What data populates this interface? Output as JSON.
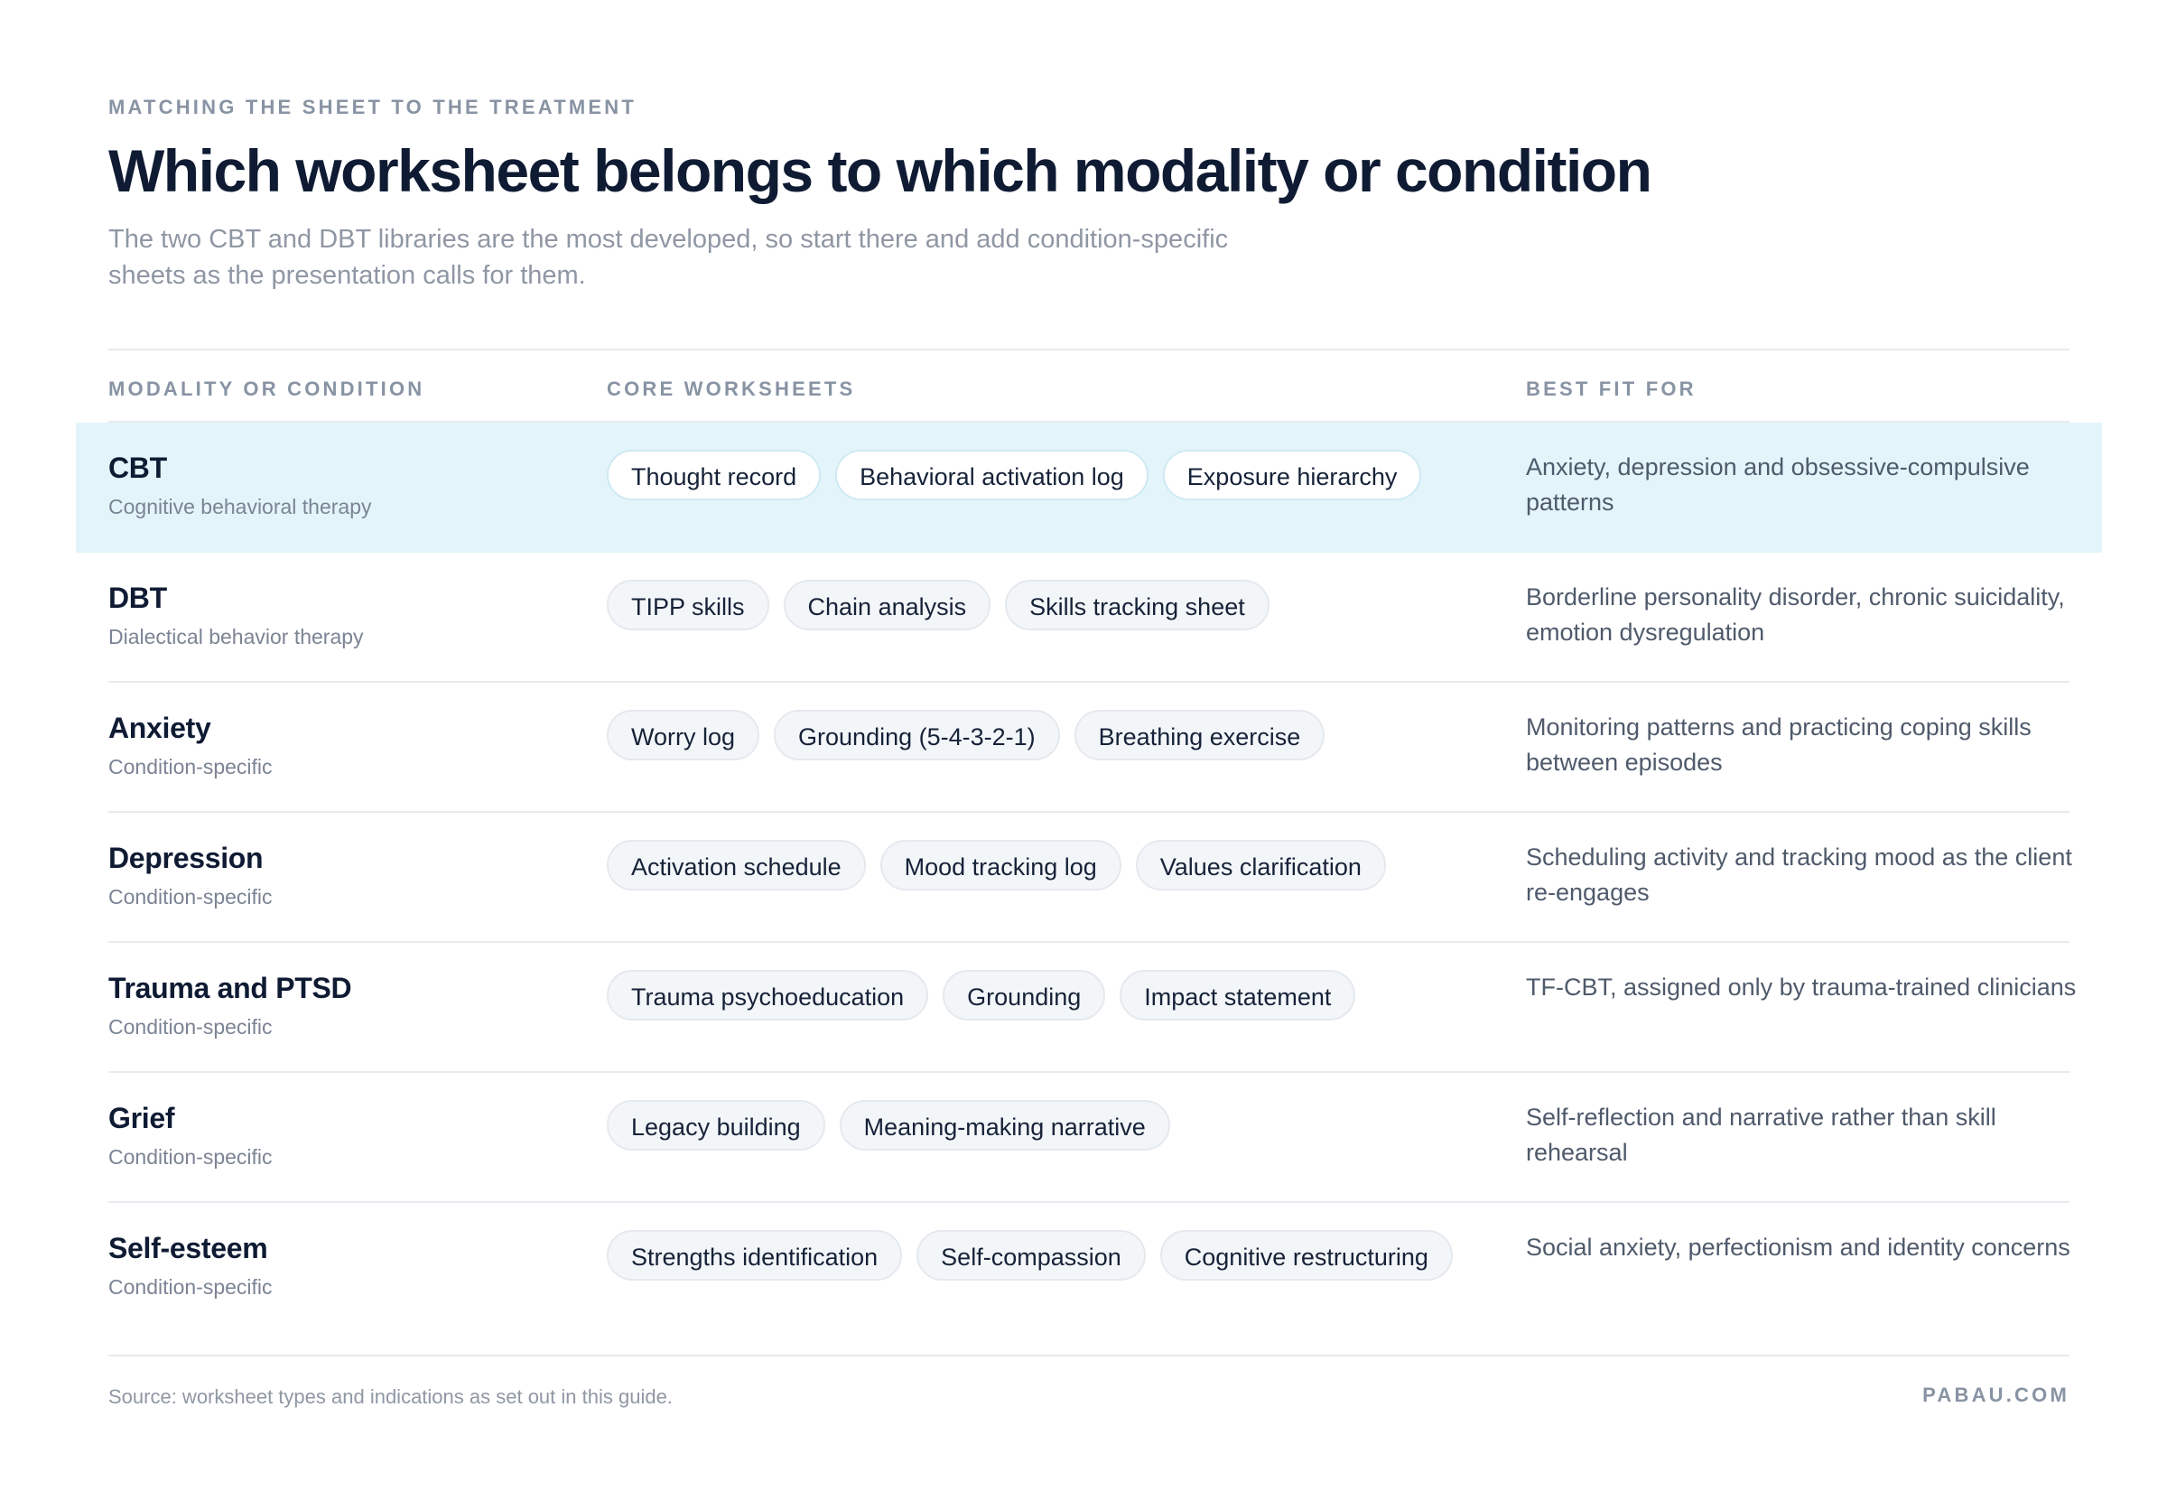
{
  "header": {
    "eyebrow": "MATCHING THE SHEET TO THE TREATMENT",
    "title": "Which worksheet belongs to which modality or condition",
    "subtitle": "The two CBT and DBT libraries are the most developed, so start there and add condition-specific sheets as the presentation calls for them."
  },
  "table": {
    "columns": [
      "MODALITY OR CONDITION",
      "CORE WORKSHEETS",
      "BEST FIT FOR"
    ],
    "rows": [
      {
        "name": "CBT",
        "subname": "Cognitive behavioral therapy",
        "worksheets": [
          "Thought record",
          "Behavioral activation log",
          "Exposure hierarchy"
        ],
        "best_fit": "Anxiety, depression and obsessive-compulsive patterns",
        "highlighted": true
      },
      {
        "name": "DBT",
        "subname": "Dialectical behavior therapy",
        "worksheets": [
          "TIPP skills",
          "Chain analysis",
          "Skills tracking sheet"
        ],
        "best_fit": "Borderline personality disorder, chronic suicidality, emotion dysregulation"
      },
      {
        "name": "Anxiety",
        "subname": "Condition-specific",
        "worksheets": [
          "Worry log",
          "Grounding (5-4-3-2-1)",
          "Breathing exercise"
        ],
        "best_fit": "Monitoring patterns and practicing coping skills between episodes"
      },
      {
        "name": "Depression",
        "subname": "Condition-specific",
        "worksheets": [
          "Activation schedule",
          "Mood tracking log",
          "Values clarification"
        ],
        "best_fit": "Scheduling activity and tracking mood as the client re-engages"
      },
      {
        "name": "Trauma and PTSD",
        "subname": "Condition-specific",
        "worksheets": [
          "Trauma psychoeducation",
          "Grounding",
          "Impact statement"
        ],
        "best_fit": "TF-CBT, assigned only by trauma-trained clinicians"
      },
      {
        "name": "Grief",
        "subname": "Condition-specific",
        "worksheets": [
          "Legacy building",
          "Meaning-making narrative"
        ],
        "best_fit": "Self-reflection and narrative rather than skill rehearsal"
      },
      {
        "name": "Self-esteem",
        "subname": "Condition-specific",
        "worksheets": [
          "Strengths identification",
          "Self-compassion",
          "Cognitive restructuring"
        ],
        "best_fit": "Social anxiety, perfectionism and identity concerns"
      }
    ]
  },
  "footer": {
    "source": "Source: worksheet types and indications as set out in this guide.",
    "brand": "PABAU.COM"
  },
  "colors": {
    "highlight_row": "#e3f5fa",
    "title": "#0f1b33",
    "muted": "#8893a3"
  }
}
